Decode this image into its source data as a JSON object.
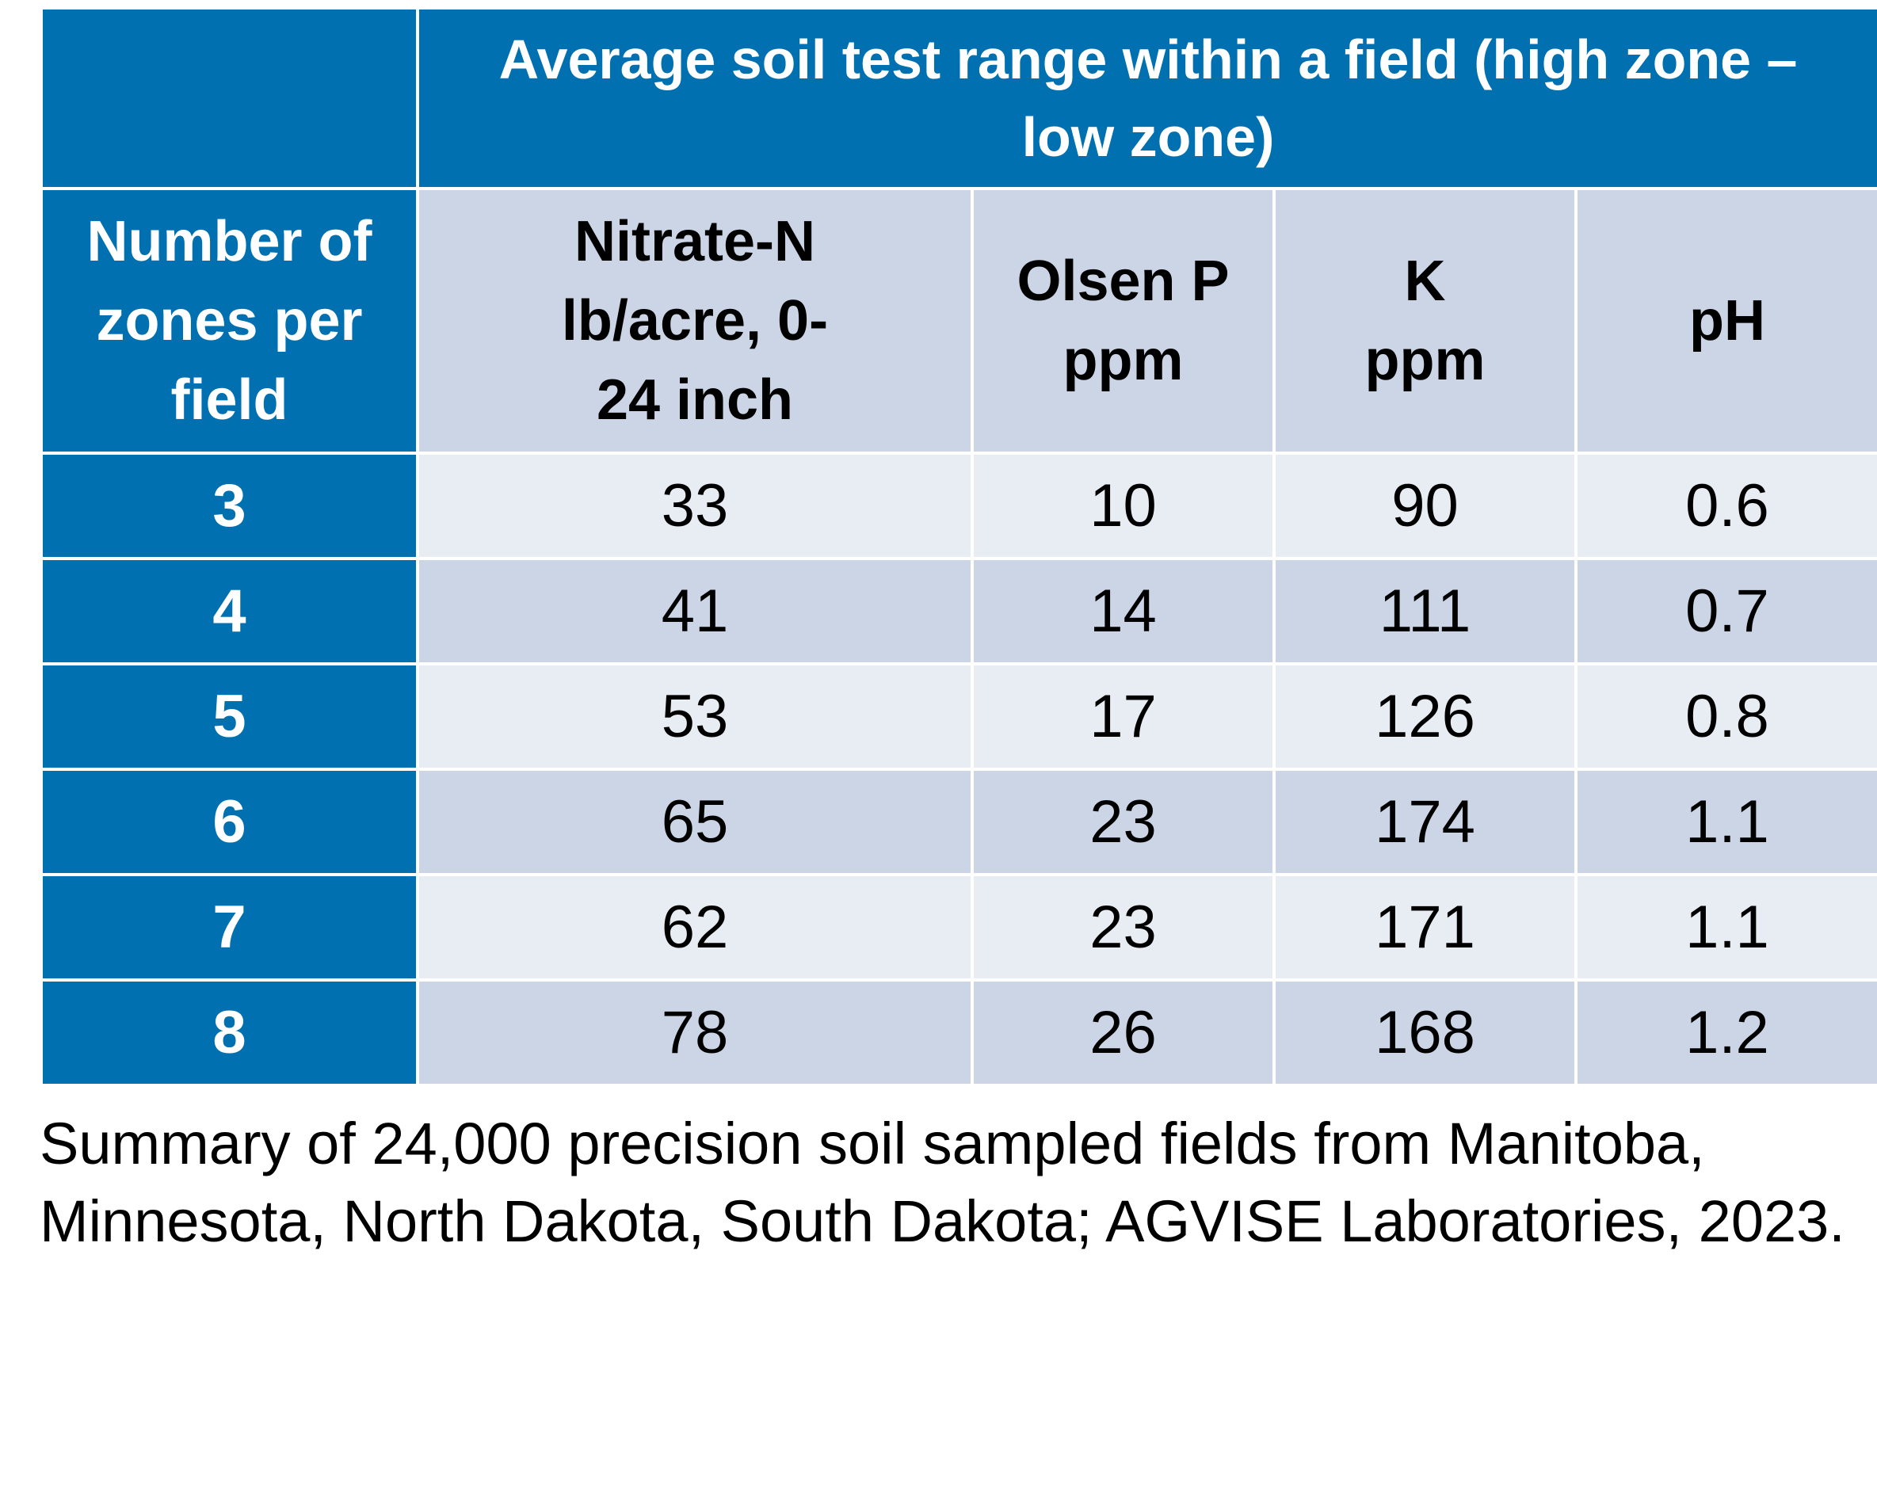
{
  "chart_data": {
    "type": "table",
    "title": "Average soil test range within a field (high zone – low zone)",
    "row_header_label": "Number of zones per field",
    "columns": [
      "Nitrate-N lb/acre, 0-24 inch",
      "Olsen P ppm",
      "K ppm",
      "pH"
    ],
    "rows": [
      {
        "zones": "3",
        "values": [
          "33",
          "10",
          "90",
          "0.6"
        ]
      },
      {
        "zones": "4",
        "values": [
          "41",
          "14",
          "111",
          "0.7"
        ]
      },
      {
        "zones": "5",
        "values": [
          "53",
          "17",
          "126",
          "0.8"
        ]
      },
      {
        "zones": "6",
        "values": [
          "65",
          "23",
          "174",
          "1.1"
        ]
      },
      {
        "zones": "7",
        "values": [
          "62",
          "23",
          "171",
          "1.1"
        ]
      },
      {
        "zones": "8",
        "values": [
          "78",
          "26",
          "168",
          "1.2"
        ]
      }
    ],
    "footnote": "Summary of 24,000 precision soil sampled fields from Manitoba, Minnesota, North Dakota, South Dakota; AGVISE Laboratories, 2023."
  },
  "colors": {
    "header_blue": "#0070b0",
    "row_dark": "#cbd5e6",
    "row_light": "#e8ecf3"
  }
}
